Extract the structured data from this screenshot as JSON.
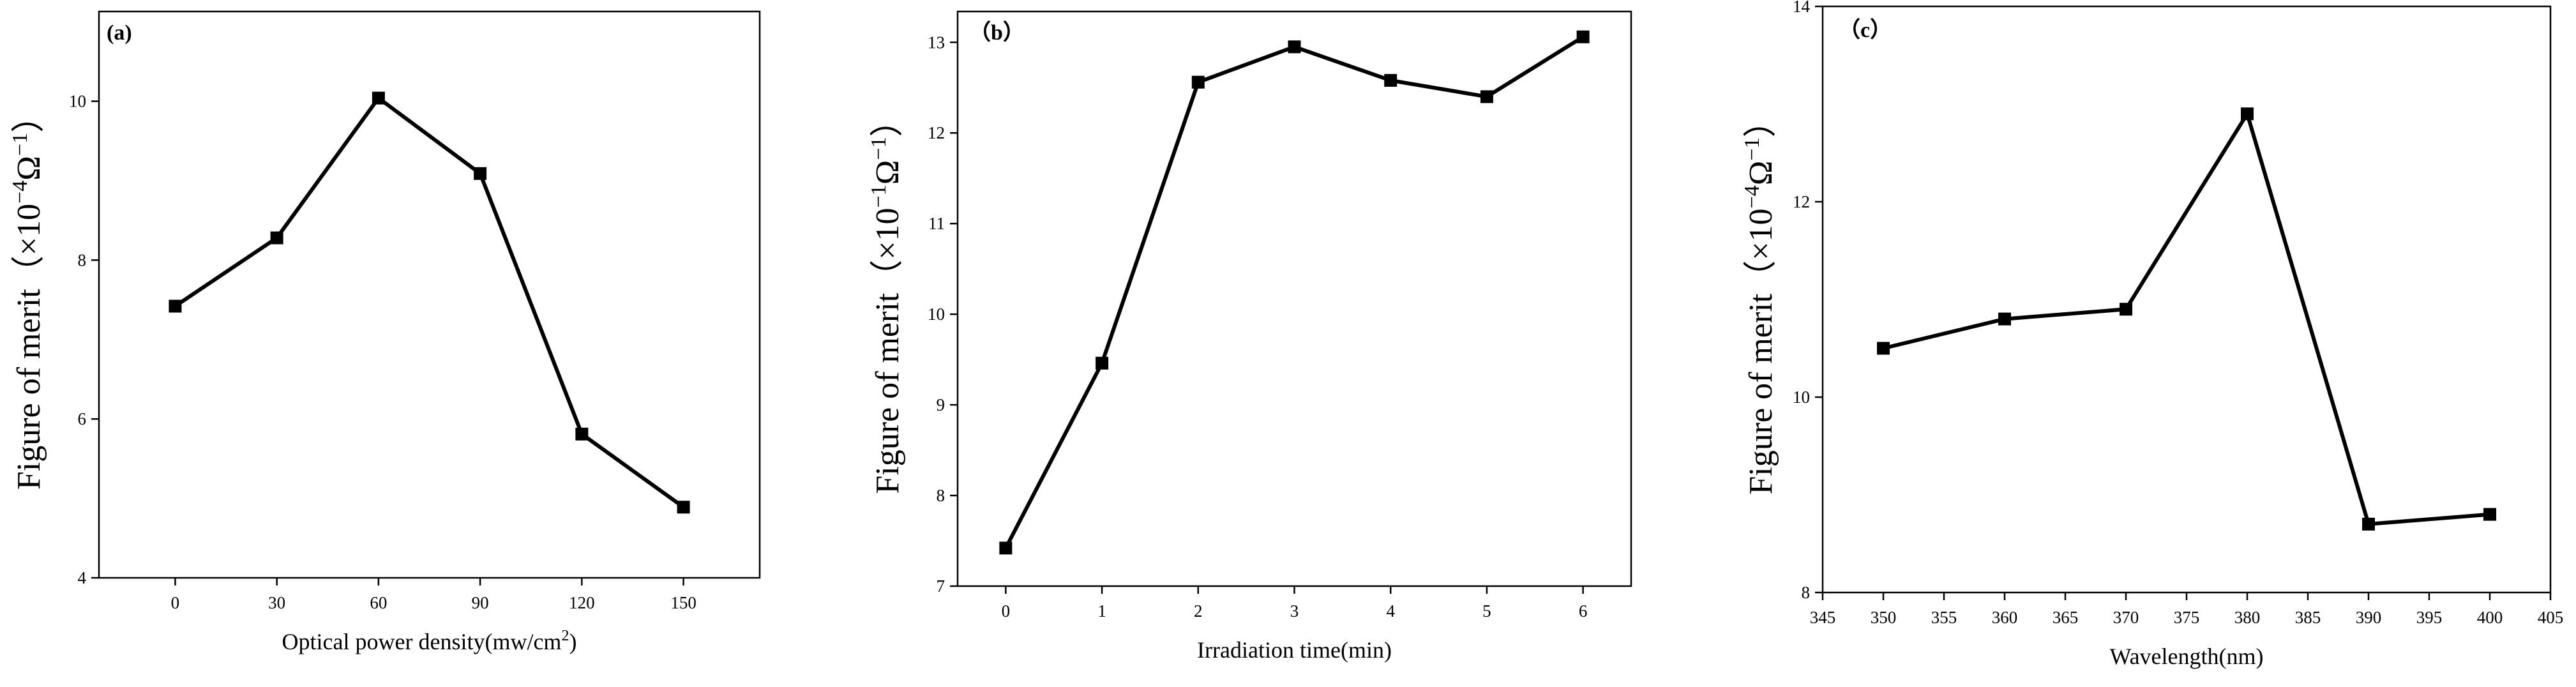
{
  "chart_data": [
    {
      "panel": "(a)",
      "type": "line",
      "title": "",
      "xlabel": "Optical power density(mw/cm",
      "xlabel_sup": "2",
      "xlabel_end": ")",
      "ylabel": "Figure of merit（×10",
      "ylabel_sup1": "−4",
      "ylabel_mid": "Ω",
      "ylabel_sup2": "−1",
      "ylabel_end": "）",
      "x": [
        0,
        30,
        60,
        90,
        120,
        150
      ],
      "y": [
        7.42,
        8.28,
        10.04,
        9.09,
        5.81,
        4.89
      ],
      "xlim": [
        -22.5,
        172.5
      ],
      "ylim": [
        4,
        11.13
      ],
      "xticks": [
        0,
        30,
        60,
        90,
        120,
        150
      ],
      "yticks": [
        4,
        6,
        8,
        10
      ],
      "grid": false,
      "legend": "none",
      "marker": "square"
    },
    {
      "panel": "（b）",
      "type": "line",
      "title": "",
      "xlabel": "Irradiation time(min)",
      "xlabel_sup": "",
      "xlabel_end": "",
      "ylabel": "Figure of merit（×10",
      "ylabel_sup1": "−1",
      "ylabel_mid": "Ω",
      "ylabel_sup2": "−1",
      "ylabel_end": "）",
      "x": [
        0,
        1,
        2,
        3,
        4,
        5,
        6
      ],
      "y": [
        7.42,
        9.46,
        12.56,
        12.95,
        12.58,
        12.4,
        13.06
      ],
      "xlim": [
        -0.5,
        6.5
      ],
      "ylim": [
        7,
        13.34
      ],
      "xticks": [
        0,
        1,
        2,
        3,
        4,
        5,
        6
      ],
      "yticks": [
        7,
        8,
        9,
        10,
        11,
        12,
        13
      ],
      "grid": false,
      "legend": "none",
      "marker": "square"
    },
    {
      "panel": "（c）",
      "type": "line",
      "title": "",
      "xlabel": "Wavelength(nm)",
      "xlabel_sup": "",
      "xlabel_end": "",
      "ylabel": "Figure of merit（×10",
      "ylabel_sup1": "−4",
      "ylabel_mid": "Ω",
      "ylabel_sup2": "−1",
      "ylabel_end": "）",
      "x": [
        350,
        360,
        370,
        380,
        390,
        400
      ],
      "y": [
        10.5,
        10.8,
        10.9,
        12.9,
        8.7,
        8.8
      ],
      "xlim": [
        345,
        405
      ],
      "ylim": [
        8,
        14
      ],
      "xticks": [
        345,
        350,
        355,
        360,
        365,
        370,
        375,
        380,
        385,
        390,
        395,
        400,
        405
      ],
      "yticks": [
        8,
        10,
        12,
        14
      ],
      "grid": false,
      "legend": "none",
      "marker": "square"
    }
  ]
}
